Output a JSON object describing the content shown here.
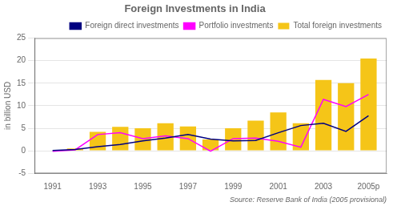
{
  "chart_data": {
    "type": "bar",
    "title": "Foreign Investments in India",
    "y_label": "in billion USD",
    "annotation": "Source: Reserve Bank of India (2005 provisional)",
    "x": [
      1991,
      1992,
      1993,
      1994,
      1995,
      1996,
      1997,
      1998,
      1999,
      2000,
      2001,
      2002,
      2003,
      2004,
      2005
    ],
    "series": [
      {
        "name": "Total foreign investments",
        "type": "bar",
        "color": "#F5C518",
        "values": [
          0.1,
          0.5,
          4.2,
          5.3,
          5.0,
          6.1,
          5.4,
          2.5,
          5.0,
          6.7,
          8.5,
          6.1,
          15.7,
          15.0,
          20.5
        ]
      },
      {
        "name": "Foreign direct investments",
        "type": "line",
        "color": "#000080",
        "values": [
          0.05,
          0.3,
          0.9,
          1.4,
          2.2,
          2.8,
          3.6,
          2.6,
          2.2,
          2.3,
          4.0,
          5.6,
          6.1,
          4.3,
          7.8
        ]
      },
      {
        "name": "Portfolio investments",
        "type": "line",
        "color": "#FF00FF",
        "values": [
          -0.1,
          0.2,
          3.6,
          4.0,
          2.7,
          3.3,
          2.7,
          -0.1,
          2.7,
          2.8,
          2.1,
          0.8,
          11.4,
          9.8,
          12.5
        ]
      }
    ],
    "xlim": [
      1990.2,
      2005.8
    ],
    "xticks": [
      1991,
      1993,
      1995,
      1997,
      1999,
      2001,
      2003,
      {
        "value": 2005,
        "label": "2005p"
      }
    ],
    "ylim": [
      -5,
      25
    ],
    "yticks": [
      -5,
      0,
      5,
      10,
      15,
      20,
      25
    ],
    "grid": true,
    "legend": "upper right"
  }
}
